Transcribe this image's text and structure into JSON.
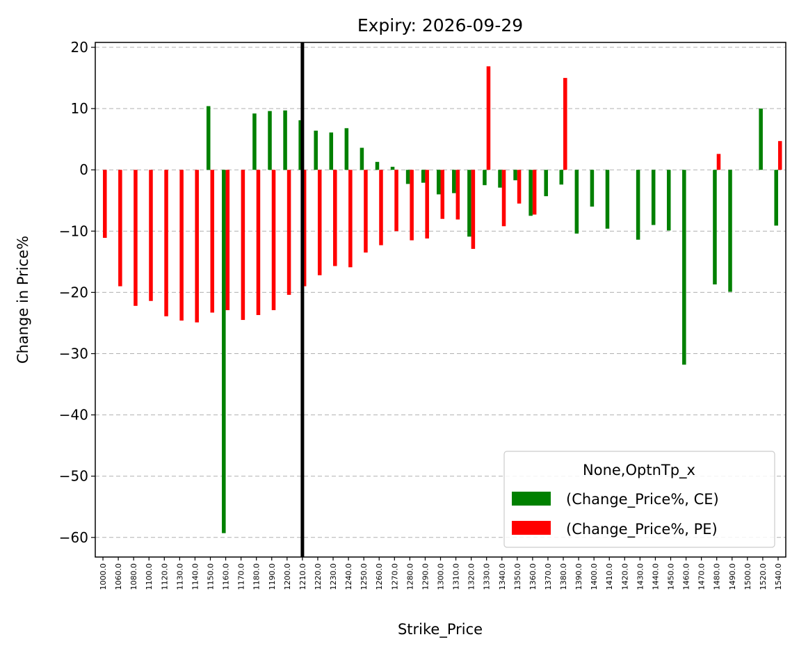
{
  "chart_data": {
    "type": "bar",
    "title": "Expiry: 2026-09-29",
    "xlabel": "Strike_Price",
    "ylabel": "Change in Price%",
    "ylim": [
      -63.2,
      20.8
    ],
    "yticks": [
      20,
      10,
      0,
      -10,
      -20,
      -30,
      -40,
      -50,
      -60
    ],
    "ytick_labels": [
      "20",
      "10",
      "0",
      "−10",
      "−20",
      "−30",
      "−40",
      "−50",
      "−60"
    ],
    "grid": "y-dashed",
    "categories": [
      "1000.0",
      "1060.0",
      "1080.0",
      "1100.0",
      "1120.0",
      "1130.0",
      "1140.0",
      "1150.0",
      "1160.0",
      "1170.0",
      "1180.0",
      "1190.0",
      "1200.0",
      "1210.0",
      "1220.0",
      "1230.0",
      "1240.0",
      "1250.0",
      "1260.0",
      "1270.0",
      "1280.0",
      "1290.0",
      "1300.0",
      "1310.0",
      "1320.0",
      "1330.0",
      "1340.0",
      "1350.0",
      "1360.0",
      "1370.0",
      "1380.0",
      "1390.0",
      "1400.0",
      "1410.0",
      "1420.0",
      "1430.0",
      "1440.0",
      "1450.0",
      "1460.0",
      "1470.0",
      "1480.0",
      "1490.0",
      "1500.0",
      "1520.0",
      "1540.0"
    ],
    "series": [
      {
        "name": "(Change_Price%, CE)",
        "color": "#008000",
        "values": [
          null,
          null,
          null,
          null,
          null,
          null,
          null,
          10.4,
          -59.3,
          null,
          9.2,
          9.6,
          9.7,
          8.1,
          6.4,
          6.1,
          6.8,
          3.6,
          1.3,
          0.5,
          -2.3,
          -2.1,
          -4.0,
          -3.8,
          -10.9,
          -2.5,
          -2.9,
          -1.7,
          -7.5,
          -4.3,
          -2.4,
          -10.4,
          -6.0,
          -9.6,
          null,
          -11.4,
          -9.0,
          -9.9,
          -31.8,
          null,
          -18.7,
          -19.9,
          null,
          10.0,
          -9.1
        ]
      },
      {
        "name": "(Change_Price%, PE)",
        "color": "#ff0000",
        "values": [
          -11.1,
          -19.0,
          -22.2,
          -21.4,
          -23.9,
          -24.6,
          -24.9,
          -23.3,
          -22.9,
          -24.5,
          -23.7,
          -22.9,
          -20.4,
          -19.0,
          -17.2,
          -15.7,
          -15.9,
          -13.5,
          -12.3,
          -10.0,
          -11.5,
          -11.2,
          -8.0,
          -8.1,
          -12.9,
          16.9,
          -9.2,
          -5.5,
          -7.3,
          null,
          15.0,
          null,
          null,
          null,
          null,
          null,
          null,
          null,
          null,
          null,
          2.6,
          null,
          null,
          null,
          4.7
        ]
      }
    ],
    "vertical_marker": {
      "category": "1210.0",
      "color": "#000000"
    },
    "legend": {
      "title": "None,OptnTp_x",
      "placement": "lower-right"
    }
  }
}
